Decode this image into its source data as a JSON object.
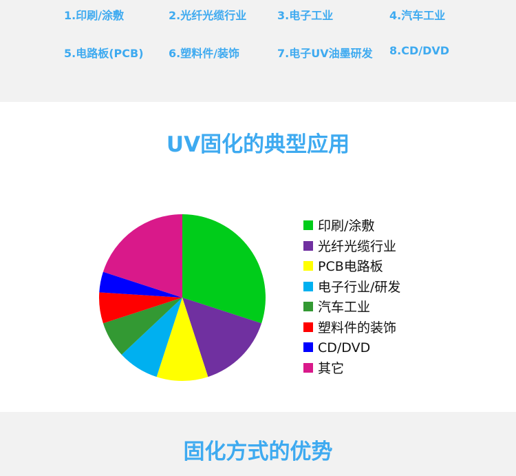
{
  "applications": [
    "1.印刷/涂敷",
    "2.光纤光缆行业",
    "3.电子工业",
    "4.汽车工业",
    "5.电路板(PCB)",
    "6.塑料件/装饰",
    "7.电子UV油墨研发",
    "8.CD/DVD"
  ],
  "section_title": "UV固化的典型应用",
  "next_section_title": "固化方式的优势",
  "chart_data": {
    "type": "pie",
    "title": "",
    "legend_position": "right",
    "categories": [
      "印刷/涂敷",
      "光纤光缆行业",
      "PCB电路板",
      "电子行业/研发",
      "汽车工业",
      "塑料件的装饰",
      "CD/DVD",
      "其它"
    ],
    "values": [
      30,
      15,
      10,
      8,
      7,
      6,
      4,
      20
    ],
    "colors": [
      "#00cc1a",
      "#7030a0",
      "#ffff00",
      "#00b0f0",
      "#339933",
      "#ff0000",
      "#0000ff",
      "#d9198a"
    ]
  }
}
